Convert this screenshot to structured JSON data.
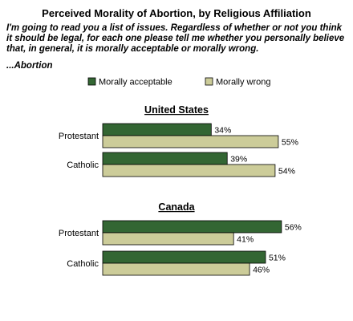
{
  "title": "Perceived Morality of Abortion, by Religious Affiliation",
  "question": "I'm going to read you a list of issues. Regardless of whether or not you think it should be legal, for each one please tell me whether you personally believe that, in general, it is morally acceptable or morally wrong.",
  "subquestion": "...Abortion",
  "colors": {
    "acceptable": "#336633",
    "wrong": "#cccc99"
  },
  "chart_data": [
    {
      "type": "bar",
      "orientation": "horizontal",
      "title": "United States",
      "categories": [
        "Protestant",
        "Catholic"
      ],
      "series": [
        {
          "name": "Morally acceptable",
          "values": [
            34,
            39
          ]
        },
        {
          "name": "Morally wrong",
          "values": [
            55,
            54
          ]
        }
      ],
      "value_suffix": "%",
      "legend": "top"
    },
    {
      "type": "bar",
      "orientation": "horizontal",
      "title": "Canada",
      "categories": [
        "Protestant",
        "Catholic"
      ],
      "series": [
        {
          "name": "Morally acceptable",
          "values": [
            56,
            51
          ]
        },
        {
          "name": "Morally wrong",
          "values": [
            41,
            46
          ]
        }
      ],
      "value_suffix": "%",
      "legend": "top"
    }
  ]
}
